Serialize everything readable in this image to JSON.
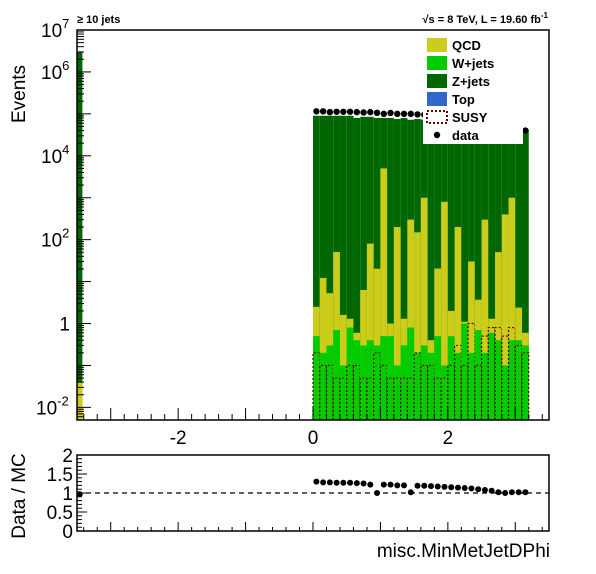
{
  "header": {
    "left_text": "≥ 10 jets",
    "right_text_prefix": "√s = 8 TeV, L = 19.60 fb",
    "right_text_sup": "-1"
  },
  "colors": {
    "QCD": "#cccc1a",
    "W+jets": "#00cc00",
    "Z+jets": "#006600",
    "Top": "#3366cc",
    "SUSY": "#660000",
    "data": "#000000"
  },
  "legend": [
    "QCD",
    "W+jets",
    "Z+jets",
    "Top",
    "SUSY",
    "data"
  ],
  "chart_data": [
    {
      "type": "bar",
      "panel": "main",
      "stacked": true,
      "ylog": true,
      "xlabel": "misc.MinMetJetDPhi",
      "ylabel": "Events",
      "xlim": [
        -3.5,
        3.5
      ],
      "ylim": [
        0.005,
        10000000
      ],
      "x_ticks": [
        -2,
        0,
        2
      ],
      "y_ticks": [
        {
          "label": "10",
          "exp": "-2",
          "value": 0.01
        },
        {
          "label": "1",
          "exp": "",
          "value": 1
        },
        {
          "label": "10",
          "exp": "2",
          "value": 100
        },
        {
          "label": "10",
          "exp": "4",
          "value": 10000
        },
        {
          "label": "10",
          "exp": "6",
          "value": 1000000
        },
        {
          "label": "10",
          "exp": "7",
          "value": 10000000
        }
      ],
      "underflow_bin": {
        "x_low": -3.5,
        "x_high": -3.42,
        "Z+jets": 3000000,
        "QCD": 0.04
      },
      "bin_edges": [
        0.0,
        0.1,
        0.2,
        0.3,
        0.4,
        0.5,
        0.6,
        0.7,
        0.8,
        0.9,
        1.0,
        1.1,
        1.2,
        1.3,
        1.4,
        1.5,
        1.6,
        1.7,
        1.8,
        1.9,
        2.0,
        2.1,
        2.2,
        2.3,
        2.4,
        2.5,
        2.6,
        2.7,
        2.8,
        2.9,
        3.0,
        3.1,
        3.2
      ],
      "series": [
        {
          "name": "QCD",
          "values": [
            2,
            12,
            5,
            50,
            1.5,
            0.5,
            0.2,
            6,
            80,
            20,
            5000,
            0.5,
            200,
            1,
            300,
            150,
            1000,
            0.2,
            20,
            800,
            1.5,
            200,
            0.1,
            30,
            3,
            300,
            0.7,
            50,
            400,
            1000,
            2,
            0.3
          ]
        },
        {
          "name": "W+jets",
          "values": [
            0.5,
            0.2,
            0.3,
            0.7,
            0.1,
            0.8,
            0.4,
            0.3,
            0.4,
            0.3,
            0.5,
            0.5,
            0.1,
            0.3,
            0.8,
            0.2,
            0.3,
            0.2,
            0.5,
            0.1,
            0.5,
            0.2,
            1.0,
            0.2,
            0.7,
            0.2,
            0.6,
            0.4,
            0.1,
            0.4,
            0.4,
            0.3
          ]
        },
        {
          "name": "Z+jets",
          "values": [
            90000,
            90000,
            90000,
            90000,
            90000,
            90000,
            80000,
            85000,
            85000,
            80000,
            75000,
            80000,
            75000,
            80000,
            72000,
            75000,
            72000,
            70000,
            65000,
            65000,
            68000,
            62000,
            60000,
            60000,
            58000,
            55000,
            55000,
            50000,
            45000,
            45000,
            45000,
            42000
          ]
        },
        {
          "name": "Top",
          "values": [
            0,
            0,
            0,
            0,
            0,
            0,
            0,
            0,
            0,
            0,
            0,
            0,
            0,
            0,
            0,
            0,
            0,
            0,
            0,
            0,
            0,
            0,
            0,
            0,
            0,
            0,
            0,
            0,
            0,
            0,
            0,
            0
          ]
        },
        {
          "name": "SUSY",
          "values": [
            0.2,
            0.1,
            0.1,
            0.05,
            0.05,
            0.1,
            0.1,
            0.05,
            0.05,
            0.2,
            0.1,
            0.05,
            0.05,
            0.05,
            0.05,
            0.2,
            0.1,
            0.1,
            0.05,
            0.05,
            0.1,
            0.3,
            0.1,
            1.0,
            0.1,
            0.5,
            0.8,
            0.8,
            0.5,
            0.8,
            0.3,
            0.2
          ]
        },
        {
          "name": "data",
          "values": [
            115000,
            115000,
            110000,
            112000,
            112000,
            112000,
            110000,
            108000,
            110000,
            106000,
            100000,
            105000,
            100000,
            100000,
            100000,
            97000,
            95000,
            95000,
            90000,
            90000,
            90000,
            87000,
            85000,
            82000,
            80000,
            75000,
            70000,
            65000,
            60000,
            60000,
            58000,
            40000
          ]
        }
      ]
    },
    {
      "type": "scatter",
      "panel": "ratio",
      "xlabel": "misc.MinMetJetDPhi",
      "ylabel": "Data / MC",
      "xlim": [
        -3.5,
        3.5
      ],
      "ylim": [
        0,
        2
      ],
      "y_ticks": [
        0,
        0.5,
        1,
        1.5,
        2
      ],
      "reference_line": 1,
      "x": [
        -3.46,
        0.05,
        0.15,
        0.25,
        0.35,
        0.45,
        0.55,
        0.65,
        0.75,
        0.85,
        0.95,
        1.05,
        1.15,
        1.25,
        1.35,
        1.45,
        1.55,
        1.65,
        1.75,
        1.85,
        1.95,
        2.05,
        2.15,
        2.25,
        2.35,
        2.45,
        2.55,
        2.65,
        2.75,
        2.85,
        2.95,
        3.05,
        3.15
      ],
      "y": [
        0.97,
        1.3,
        1.28,
        1.28,
        1.27,
        1.27,
        1.27,
        1.26,
        1.25,
        1.22,
        1.0,
        1.22,
        1.22,
        1.2,
        1.2,
        1.02,
        1.19,
        1.19,
        1.18,
        1.17,
        1.16,
        1.15,
        1.14,
        1.13,
        1.12,
        1.1,
        1.08,
        1.06,
        1.02,
        1.0,
        1.02,
        1.02,
        1.02
      ]
    }
  ]
}
